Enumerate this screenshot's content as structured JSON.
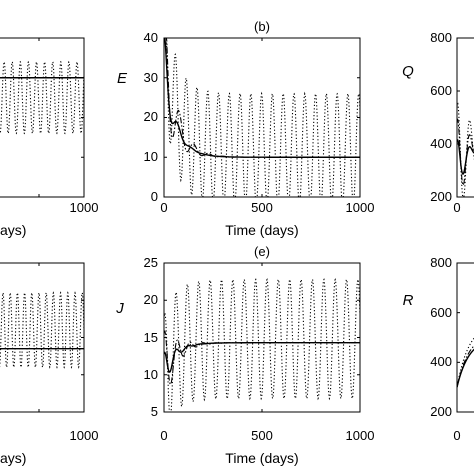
{
  "chart_data": [
    {
      "id": "a-partial",
      "type": "line",
      "title": "",
      "ylabel": "",
      "xlabel": "ays)",
      "xticks_visible": [
        "1000"
      ],
      "xlim": [
        0,
        1000
      ],
      "ylim": [
        0,
        40
      ],
      "yticks": [],
      "series": [
        {
          "style": "solid",
          "period": 0,
          "center": 30,
          "amp0": 0,
          "decay": 1
        },
        {
          "style": "dotted",
          "period": 90,
          "center": 25,
          "amp0": 9,
          "decay": 0
        }
      ]
    },
    {
      "id": "b",
      "type": "line",
      "title": "(b)",
      "ylabel": "E",
      "xlabel": "Time (days)",
      "xlim": [
        0,
        1000
      ],
      "ylim": [
        0,
        40
      ],
      "xticks": [
        "0",
        "500",
        "1000"
      ],
      "yticks": [
        "0",
        "10",
        "20",
        "30",
        "40"
      ],
      "series": [
        {
          "style": "solid",
          "start": 33,
          "end": 10,
          "period": 70,
          "amp0": 10,
          "decay": 35
        },
        {
          "style": "dashdot",
          "start": 36,
          "end": 10,
          "period": 75,
          "amp0": 16,
          "decay": 60
        },
        {
          "style": "dotted",
          "start": 38,
          "end": 12,
          "period": 55,
          "amp0": 14,
          "decay": 0
        }
      ]
    },
    {
      "id": "c-partial",
      "type": "line",
      "title": "",
      "ylabel": "Q",
      "xlabel": "",
      "xlim": [
        0,
        1000
      ],
      "ylim": [
        200,
        800
      ],
      "xticks_visible": [
        "0"
      ],
      "yticks": [
        "200",
        "400",
        "600",
        "800"
      ],
      "series": [
        {
          "style": "solid",
          "start": 300,
          "end": 400,
          "period": 60,
          "amp0": 120,
          "decay": 40
        },
        {
          "style": "dashdot",
          "start": 300,
          "end": 420,
          "period": 60,
          "amp0": 200,
          "decay": 50
        },
        {
          "style": "dotted",
          "start": 300,
          "end": 430,
          "period": 60,
          "amp0": 260,
          "decay": 70
        }
      ]
    },
    {
      "id": "d-partial",
      "type": "line",
      "title": "",
      "ylabel": "",
      "xlabel": "ays)",
      "xticks_visible": [
        "1000"
      ],
      "xlim": [
        0,
        1000
      ],
      "ylim": [
        0,
        40
      ],
      "yticks": [],
      "series": [
        {
          "style": "solid",
          "period": 0,
          "center": 17,
          "amp0": 0,
          "decay": 1
        },
        {
          "style": "dotted",
          "period": 80,
          "center": 22,
          "amp0": 10,
          "decay": 0
        }
      ]
    },
    {
      "id": "e",
      "type": "line",
      "title": "(e)",
      "ylabel": "J",
      "xlabel": "Time (days)",
      "xlim": [
        0,
        1000
      ],
      "ylim": [
        5,
        25
      ],
      "xticks": [
        "0",
        "500",
        "1000"
      ],
      "yticks": [
        "5",
        "10",
        "15",
        "20",
        "25"
      ],
      "series": [
        {
          "style": "solid",
          "start": 10,
          "end": 14.3,
          "period": 60,
          "amp0": 3,
          "decay": 40
        },
        {
          "style": "dashdot",
          "start": 10,
          "end": 14.3,
          "period": 65,
          "amp0": 6,
          "decay": 55
        },
        {
          "style": "dotted",
          "start": 10,
          "end": 14.8,
          "period": 58,
          "amp0": 8,
          "decay": 0
        }
      ]
    },
    {
      "id": "f-partial",
      "type": "line",
      "title": "",
      "ylabel": "R",
      "xlabel": "",
      "xlim": [
        0,
        1000
      ],
      "ylim": [
        200,
        800
      ],
      "xticks_visible": [
        "0"
      ],
      "yticks": [
        "200",
        "400",
        "600",
        "800"
      ],
      "series": [
        {
          "style": "solid",
          "start": 300,
          "end": 500,
          "period": 0,
          "amp0": 0,
          "decay": 1
        },
        {
          "style": "dashdot",
          "start": 300,
          "end": 520,
          "period": 0,
          "amp0": 0,
          "decay": 1
        },
        {
          "style": "dotted",
          "start": 300,
          "end": 560,
          "period": 0,
          "amp0": 0,
          "decay": 1
        }
      ]
    }
  ]
}
